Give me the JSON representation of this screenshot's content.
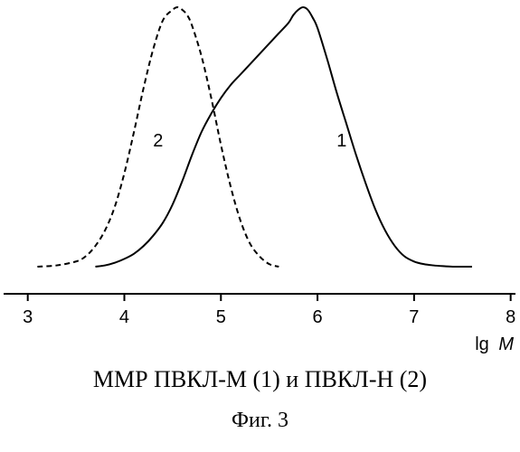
{
  "chart_data": {
    "type": "line",
    "title": "",
    "xlabel": "lg",
    "xlabel_italic": "M",
    "ylabel": "",
    "xlim": [
      2.75,
      8.05
    ],
    "ylim": [
      0,
      1
    ],
    "xticks": [
      3,
      4,
      5,
      6,
      7,
      8
    ],
    "grid": false,
    "legend": "none",
    "series": [
      {
        "label": "1",
        "style": "solid",
        "color": "#000000",
        "x": [
          3.7,
          3.8,
          3.9,
          4.0,
          4.1,
          4.2,
          4.3,
          4.4,
          4.5,
          4.6,
          4.7,
          4.8,
          4.9,
          5.0,
          5.1,
          5.2,
          5.3,
          5.4,
          5.5,
          5.6,
          5.7,
          5.75,
          5.8,
          5.85,
          5.9,
          5.95,
          6.0,
          6.1,
          6.2,
          6.3,
          6.4,
          6.5,
          6.6,
          6.7,
          6.8,
          6.9,
          7.0,
          7.1,
          7.2,
          7.3,
          7.4,
          7.5,
          7.6
        ],
        "y": [
          0.0,
          0.005,
          0.015,
          0.03,
          0.05,
          0.08,
          0.12,
          0.17,
          0.24,
          0.33,
          0.43,
          0.52,
          0.59,
          0.65,
          0.7,
          0.74,
          0.78,
          0.82,
          0.86,
          0.9,
          0.94,
          0.97,
          0.99,
          1.0,
          0.99,
          0.96,
          0.92,
          0.8,
          0.67,
          0.55,
          0.43,
          0.32,
          0.22,
          0.14,
          0.08,
          0.04,
          0.02,
          0.01,
          0.005,
          0.002,
          0.0,
          0.0,
          0.0
        ]
      },
      {
        "label": "2",
        "style": "dashed",
        "color": "#000000",
        "x": [
          3.1,
          3.3,
          3.5,
          3.6,
          3.7,
          3.8,
          3.9,
          4.0,
          4.1,
          4.2,
          4.3,
          4.4,
          4.5,
          4.55,
          4.6,
          4.65,
          4.7,
          4.8,
          4.9,
          5.0,
          5.1,
          5.2,
          5.3,
          5.4,
          5.5,
          5.6
        ],
        "y": [
          0.0,
          0.005,
          0.02,
          0.04,
          0.08,
          0.14,
          0.23,
          0.36,
          0.52,
          0.69,
          0.84,
          0.95,
          0.99,
          1.0,
          0.99,
          0.97,
          0.93,
          0.81,
          0.65,
          0.47,
          0.31,
          0.18,
          0.09,
          0.04,
          0.01,
          0.0
        ]
      }
    ]
  },
  "caption": {
    "main": "ММР ПВКЛ-М (1) и ПВКЛ-Н (2)",
    "figure": "Фиг. 3"
  }
}
